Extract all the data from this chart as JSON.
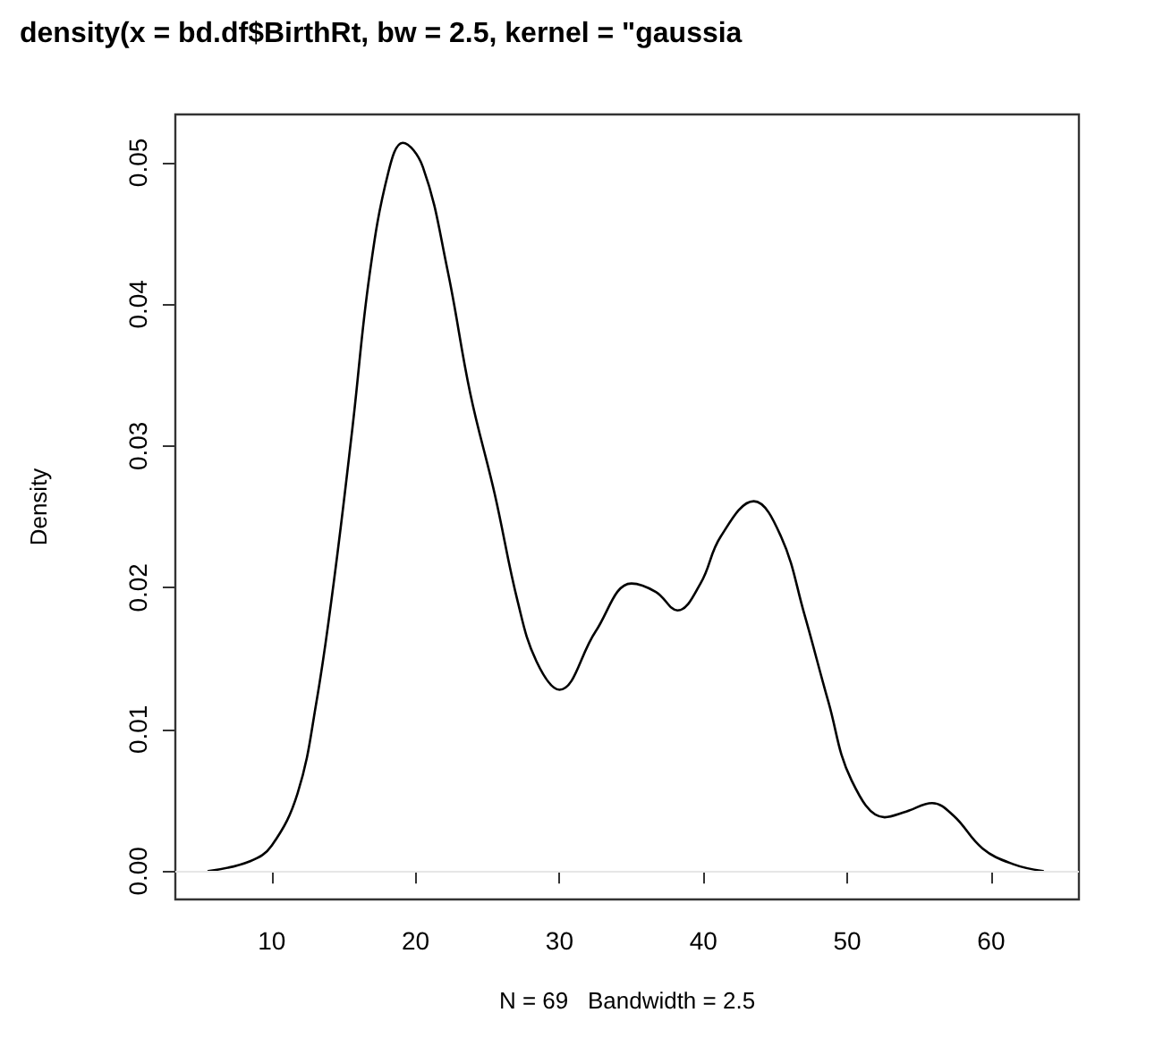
{
  "chart_data": {
    "type": "line",
    "title": "density(x = bd.df$BirthRt, bw = 2.5, kernel = \"gaussia",
    "xlabel": "N = 69   Bandwidth = 2.5",
    "ylabel": "Density",
    "x": [
      5.6,
      8.5,
      10,
      11.8,
      13.1,
      14.3,
      15.6,
      16.8,
      18.1,
      19.1,
      20.5,
      22.2,
      23.8,
      25.5,
      27.1,
      28.4,
      30.0,
      32.5,
      35.0,
      36.7,
      38.2,
      39.8,
      41.2,
      43.5,
      45.4,
      47.0,
      48.7,
      50.3,
      52.6,
      54.1,
      55.9,
      57.4,
      59.4,
      61.5,
      63.6
    ],
    "series": [
      {
        "color": "#000000",
        "values": [
          0,
          0.0007,
          0.0018,
          0.0055,
          0.0119,
          0.0203,
          0.0312,
          0.0421,
          0.0493,
          0.0514,
          0.0497,
          0.0425,
          0.0337,
          0.0266,
          0.019,
          0.0148,
          0.0128,
          0.0169,
          0.0203,
          0.0197,
          0.0184,
          0.0203,
          0.0236,
          0.0261,
          0.0236,
          0.0182,
          0.0119,
          0.0064,
          0.0038,
          0.0042,
          0.0048,
          0.0039,
          0.0016,
          0.0005,
          0
        ]
      }
    ],
    "xlim": [
      3.3,
      66.1
    ],
    "ylim": [
      -0.002,
      0.0534
    ],
    "xticks": [
      10,
      20,
      30,
      40,
      50,
      60
    ],
    "yticks": [
      {
        "value": 0,
        "label": "0.00"
      },
      0.01,
      0.02,
      0.03,
      0.04,
      0.05
    ],
    "ref_lines": [
      {
        "axis": "y",
        "value": 0,
        "color": "#e6e6e6"
      }
    ],
    "grid": false,
    "marker": "none",
    "line_style": "solid"
  }
}
